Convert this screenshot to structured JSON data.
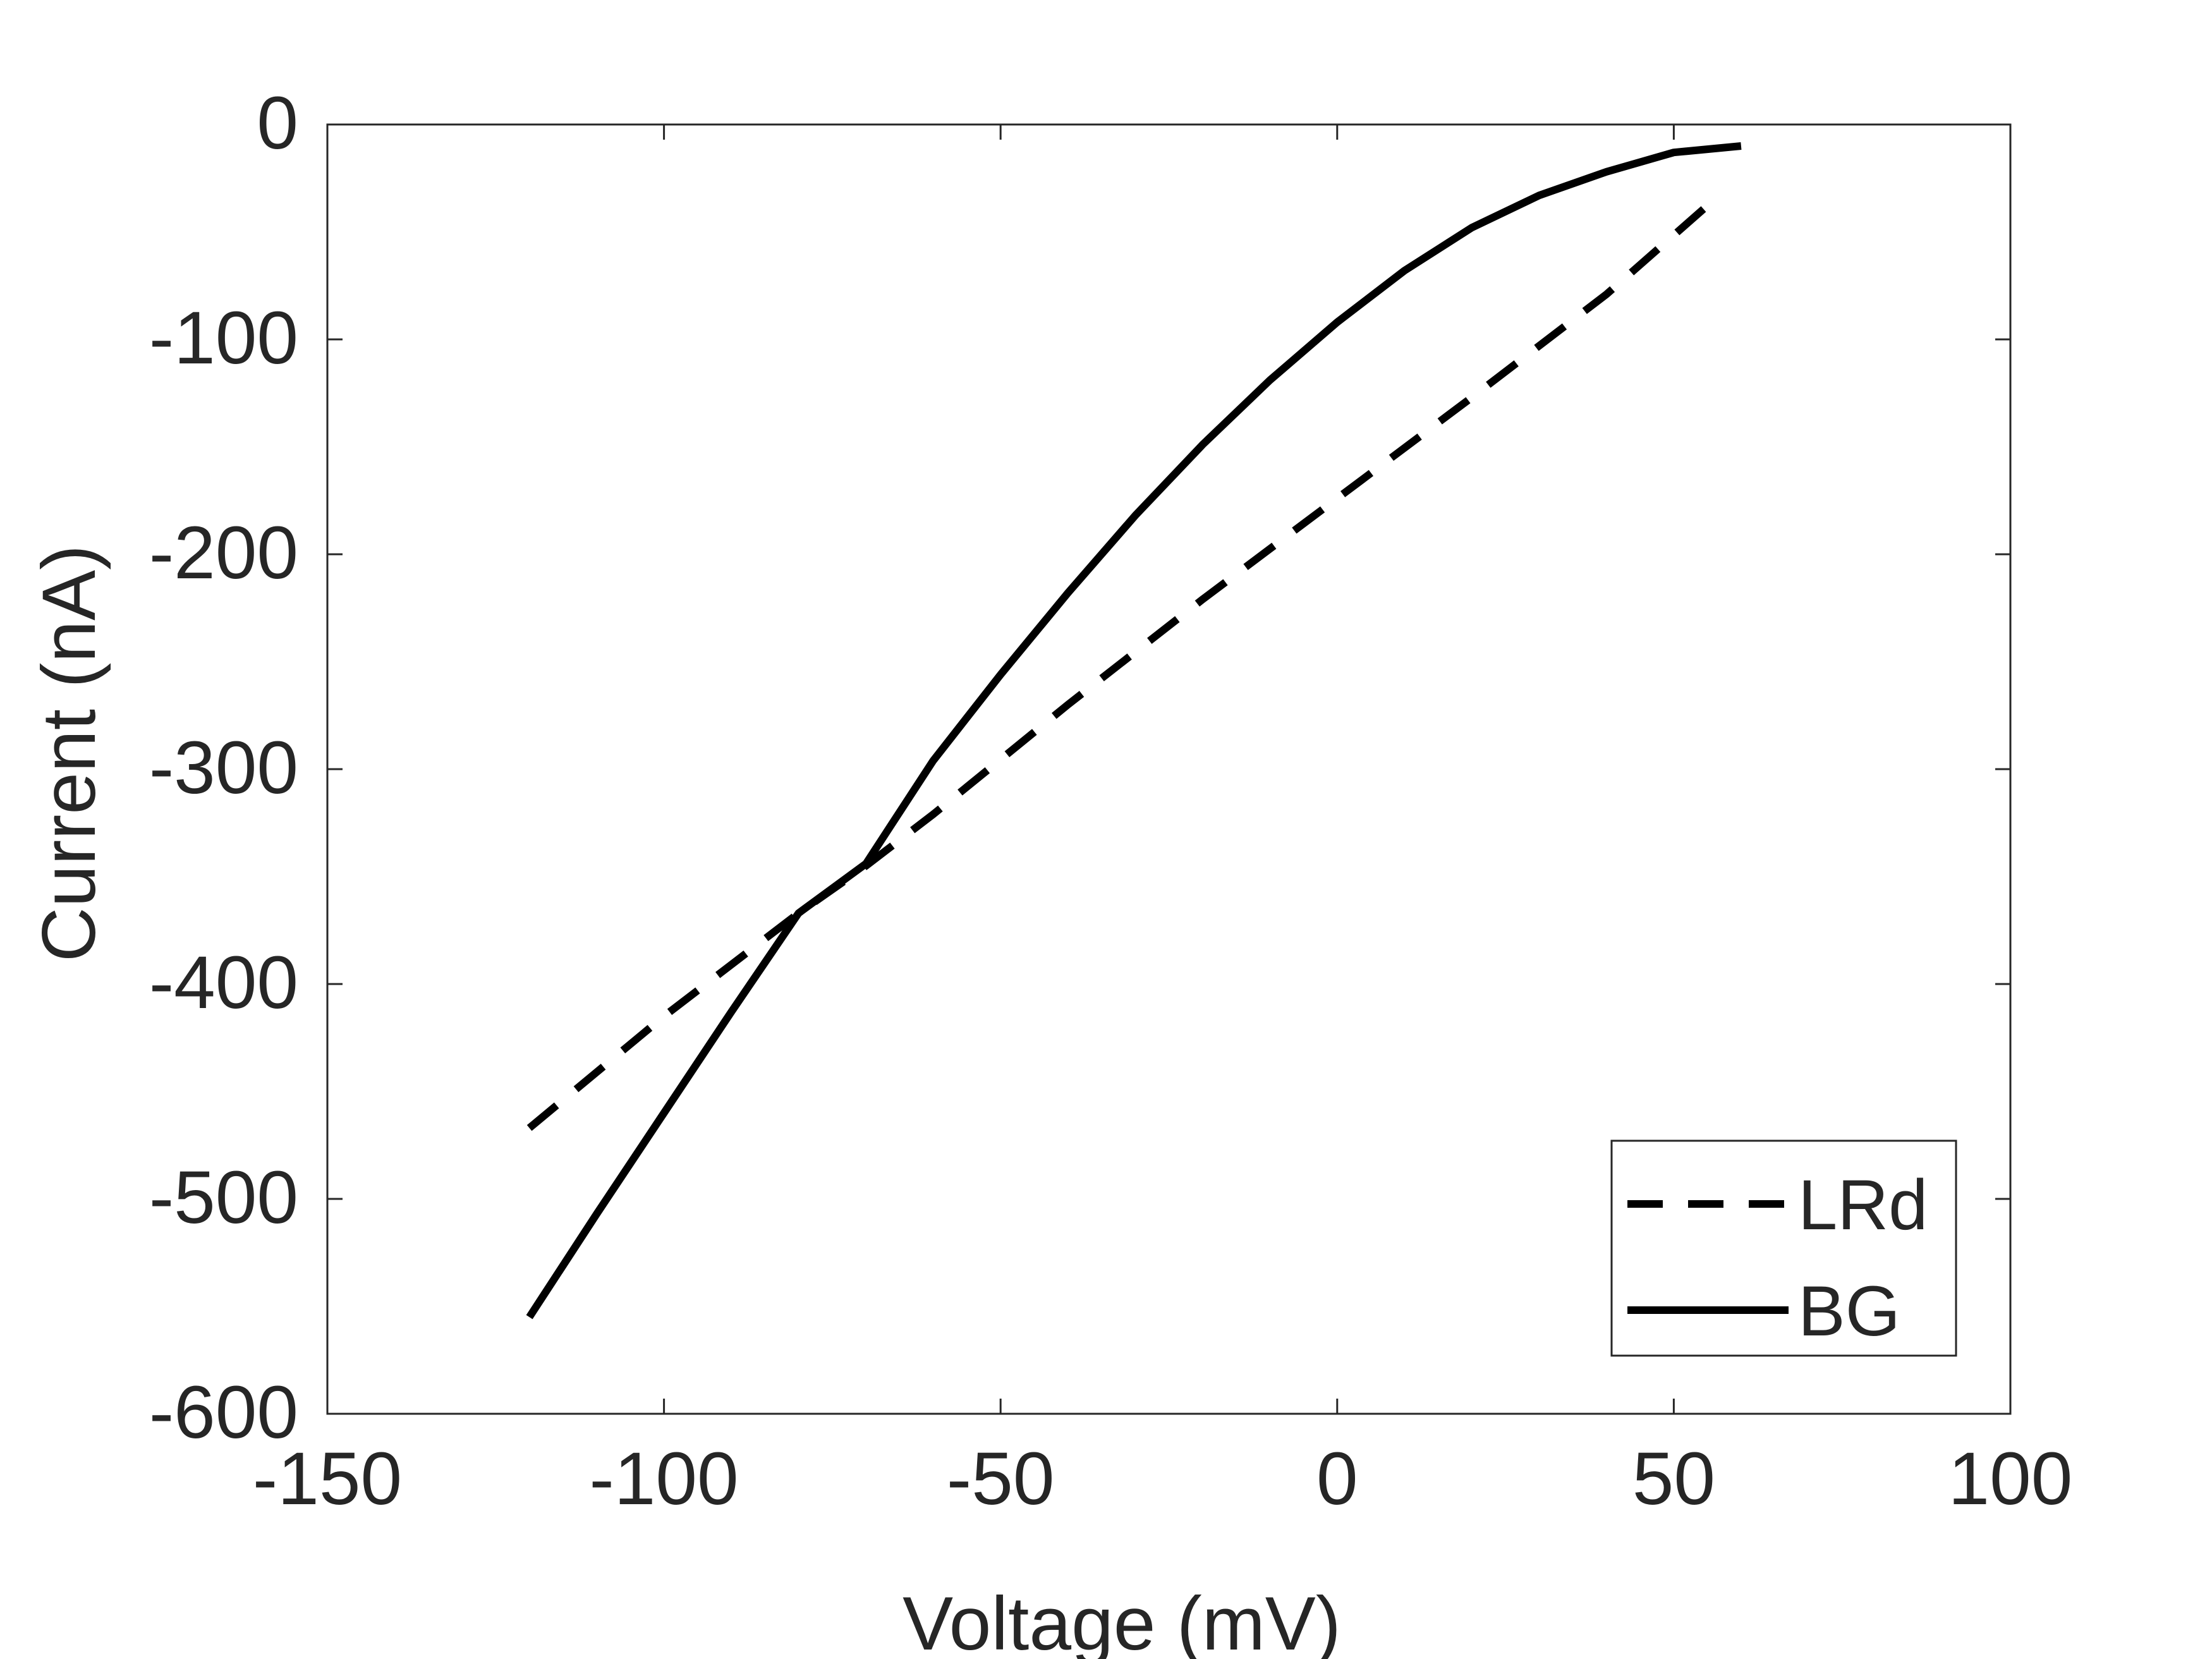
{
  "chart_data": {
    "type": "line",
    "title": "",
    "xlabel": "Voltage (mV)",
    "ylabel": "Current (nA)",
    "xlim": [
      -150,
      100
    ],
    "ylim": [
      -600,
      0
    ],
    "xticks": [
      -150,
      -100,
      -50,
      0,
      50,
      100
    ],
    "yticks": [
      0,
      -100,
      -200,
      -300,
      -400,
      -500,
      -600
    ],
    "grid": false,
    "legend_position": "bottom-right",
    "series": [
      {
        "name": "LRd",
        "style": "dashed",
        "color": "#000000",
        "x": [
          -120,
          -100,
          -80,
          -70,
          -60,
          -40,
          -20,
          0,
          20,
          40,
          56
        ],
        "y": [
          -467,
          -415,
          -367,
          -345,
          -321,
          -270,
          -221,
          -174,
          -127,
          -79,
          -35
        ]
      },
      {
        "name": "BG",
        "style": "solid",
        "color": "#000000",
        "x": [
          -120,
          -110,
          -100,
          -90,
          -80,
          -70,
          -60,
          -50,
          -40,
          -30,
          -20,
          -10,
          0,
          10,
          20,
          30,
          40,
          50,
          60
        ],
        "y": [
          -555,
          -507,
          -460,
          -413,
          -367,
          -344,
          -296,
          -256,
          -218,
          -182,
          -149,
          -119,
          -92,
          -68,
          -48,
          -33,
          -22,
          -13,
          -10
        ]
      }
    ]
  }
}
